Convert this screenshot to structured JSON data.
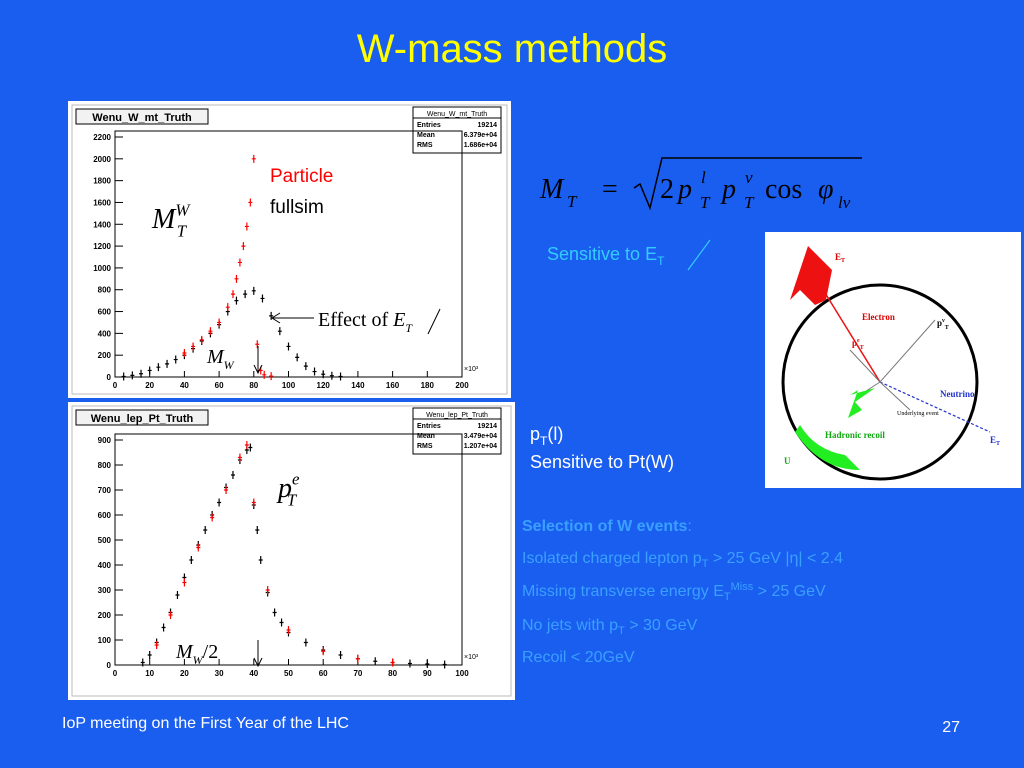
{
  "title": "W-mass methods",
  "formula": {
    "parts": [
      "M",
      "T",
      "=",
      "2",
      "p",
      "l",
      "T",
      "p",
      "ν",
      "T",
      "cos",
      "φ",
      "lν"
    ]
  },
  "sensitive_met": {
    "parts": [
      "Sensitive to ",
      "E",
      "T"
    ]
  },
  "diagram": {
    "labels": [
      "E",
      "T",
      "Electron",
      "p",
      "ν",
      "T",
      "p",
      "e",
      "T",
      "Neutrino",
      "Underlying event",
      "Hadronic recoil",
      "E",
      "T",
      "U"
    ]
  },
  "pt_label": {
    "parts": [
      "p",
      "T",
      "(l)"
    ]
  },
  "sensitive_ptw": "Sensitive to Pt(W)",
  "selection": {
    "heading": "Selection of W events",
    "colon": ":",
    "lines": [
      [
        "Isolated charged lepton p",
        "T",
        " > 25 GeV |η| < 2.4"
      ],
      [
        "Missing transverse energy E",
        "T",
        "Miss",
        " > 25 GeV"
      ],
      [
        "No jets with p",
        "T",
        " > 30 GeV"
      ],
      [
        "Recoil < 20GeV"
      ]
    ]
  },
  "footer": "IoP meeting on the First Year of the LHC",
  "page_number": "27",
  "chart_data": [
    {
      "type": "scatter",
      "title": "Wenu_W_mt_Truth",
      "stats": {
        "name": "Wenu_W_mt_Truth",
        "rows": [
          [
            "Entries",
            "19214"
          ],
          [
            "Mean",
            "6.379e+04"
          ],
          [
            "RMS",
            "1.686e+04"
          ]
        ]
      },
      "x_multiplier": "×10³",
      "xlim": [
        0,
        200
      ],
      "ylim": [
        0,
        2200
      ],
      "xticks": [
        0,
        20,
        40,
        60,
        80,
        100,
        120,
        140,
        160,
        180,
        200
      ],
      "yticks": [
        0,
        200,
        400,
        600,
        800,
        1000,
        1200,
        1400,
        1600,
        1800,
        2000,
        2200
      ],
      "series": [
        {
          "name": "fullsim",
          "color": "#000000",
          "x": [
            5,
            10,
            15,
            20,
            25,
            30,
            35,
            40,
            45,
            50,
            55,
            60,
            65,
            70,
            75,
            80,
            85,
            90,
            95,
            100,
            105,
            110,
            115,
            120,
            125,
            130
          ],
          "values": [
            5,
            15,
            30,
            60,
            90,
            120,
            160,
            200,
            260,
            330,
            400,
            480,
            600,
            700,
            760,
            790,
            720,
            560,
            420,
            280,
            180,
            100,
            50,
            25,
            12,
            5
          ]
        },
        {
          "name": "Particle",
          "color": "#ff0000",
          "x": [
            40,
            45,
            50,
            55,
            60,
            65,
            68,
            70,
            72,
            74,
            76,
            78,
            80,
            82,
            84,
            86,
            90
          ],
          "values": [
            220,
            280,
            340,
            420,
            500,
            640,
            760,
            900,
            1050,
            1200,
            1380,
            1600,
            2000,
            300,
            60,
            20,
            8
          ]
        }
      ],
      "legend": true,
      "annotations": {
        "mtw": {
          "base": "M",
          "sub": "T",
          "sup": "W"
        },
        "effect": {
          "text": "Effect of ",
          "base": "E",
          "sub": "T"
        },
        "mw": {
          "base": "M",
          "sub": "W"
        }
      }
    },
    {
      "type": "scatter",
      "title": "Wenu_lep_Pt_Truth",
      "stats": {
        "name": "Wenu_lep_Pt_Truth",
        "rows": [
          [
            "Entries",
            "19214"
          ],
          [
            "Mean",
            "3.479e+04"
          ],
          [
            "RMS",
            "1.207e+04"
          ]
        ]
      },
      "x_multiplier": "×10³",
      "xlim": [
        0,
        100
      ],
      "ylim": [
        0,
        900
      ],
      "xticks": [
        0,
        10,
        20,
        30,
        40,
        50,
        60,
        70,
        80,
        90,
        100
      ],
      "yticks": [
        0,
        100,
        200,
        300,
        400,
        500,
        600,
        700,
        800,
        900
      ],
      "series": [
        {
          "color": "#000000",
          "x": [
            8,
            10,
            12,
            14,
            16,
            18,
            20,
            22,
            24,
            26,
            28,
            30,
            32,
            34,
            36,
            38,
            39,
            40,
            41,
            42,
            44,
            46,
            48,
            50,
            55,
            60,
            65,
            70,
            75,
            80,
            85,
            90,
            95
          ],
          "values": [
            10,
            40,
            90,
            150,
            210,
            280,
            350,
            420,
            480,
            540,
            600,
            650,
            710,
            760,
            820,
            860,
            870,
            640,
            540,
            420,
            290,
            210,
            170,
            130,
            90,
            60,
            40,
            25,
            15,
            10,
            6,
            4,
            2
          ]
        },
        {
          "color": "#ff0000",
          "x": [
            12,
            16,
            20,
            24,
            28,
            32,
            36,
            38,
            40,
            44,
            50,
            60,
            70,
            80
          ],
          "values": [
            80,
            200,
            330,
            470,
            590,
            700,
            830,
            880,
            650,
            300,
            140,
            55,
            25,
            10
          ]
        }
      ],
      "legend": false,
      "annotations": {
        "pte": {
          "base": "p",
          "sub": "T",
          "sup": "e"
        },
        "mw2": {
          "base": "M",
          "sub": "W",
          "text": "/2"
        }
      }
    }
  ]
}
